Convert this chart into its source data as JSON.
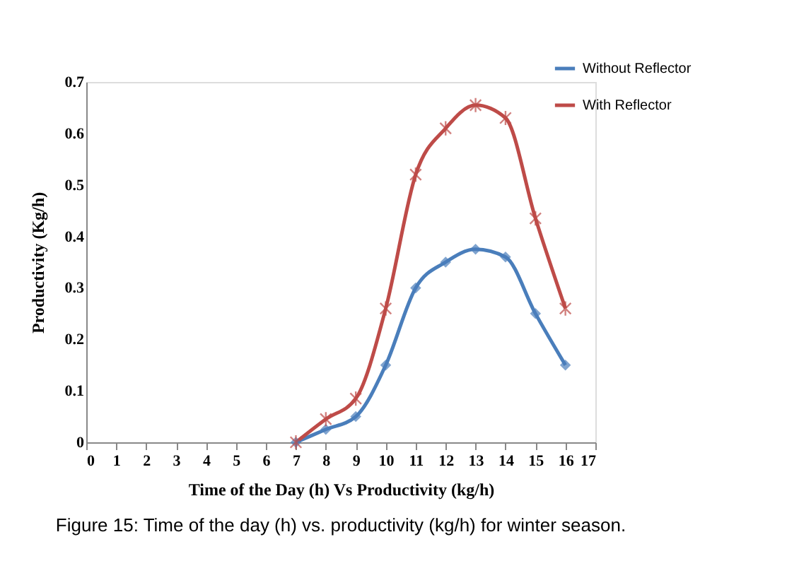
{
  "chart_data": {
    "type": "line",
    "x": [
      7,
      8,
      9,
      10,
      11,
      12,
      13,
      14,
      15,
      16
    ],
    "series": [
      {
        "name": "Without Reflector",
        "color": "#4a7ebb",
        "marker": "diamond",
        "values": [
          0,
          0.025,
          0.05,
          0.15,
          0.3,
          0.35,
          0.375,
          0.36,
          0.25,
          0.15
        ]
      },
      {
        "name": "With Reflector",
        "color": "#be4b48",
        "marker": "cross",
        "values": [
          0,
          0.045,
          0.085,
          0.26,
          0.52,
          0.61,
          0.655,
          0.63,
          0.435,
          0.26
        ]
      }
    ],
    "xlabel": "Time of the Day (h)  Vs Productivity  (kg/h)",
    "ylabel": "Productivity  (Kg/h)",
    "xlim": [
      0,
      17
    ],
    "xticks": [
      0,
      1,
      2,
      3,
      4,
      5,
      6,
      7,
      8,
      9,
      10,
      11,
      12,
      13,
      14,
      15,
      16,
      17
    ],
    "ylim": [
      0,
      0.7
    ],
    "yticks": [
      0,
      0.1,
      0.2,
      0.3,
      0.4,
      0.5,
      0.6,
      0.7
    ],
    "grid": false,
    "legend": "top right",
    "line_style": "solid",
    "annotations": [
      "Figure 15: Time of the day (h) vs. productivity (kg/h) for winter season."
    ]
  }
}
